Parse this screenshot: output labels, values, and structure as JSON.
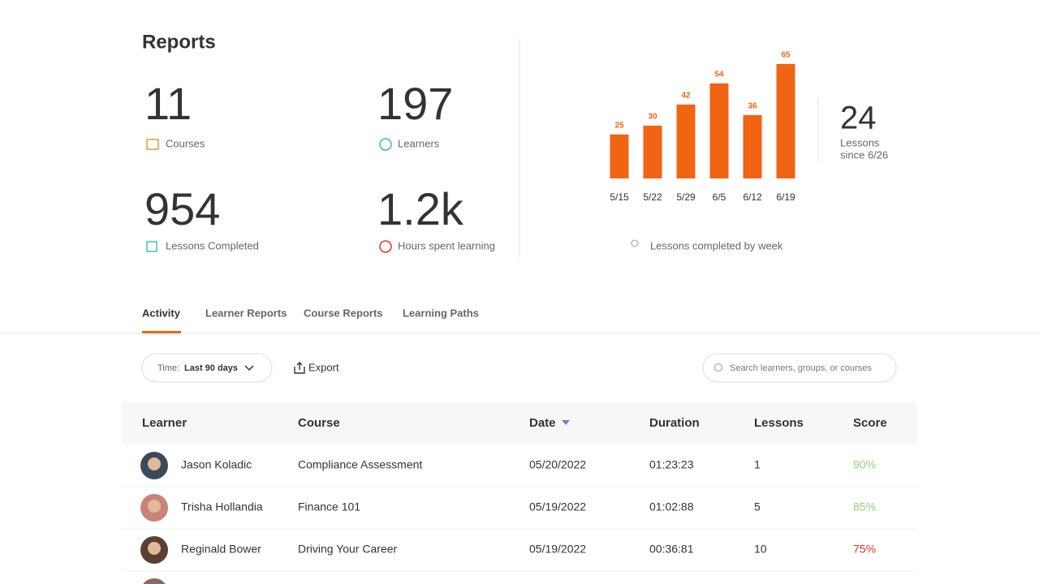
{
  "header": {
    "title": "Reports"
  },
  "stats": [
    {
      "value": "11",
      "label": "Courses"
    },
    {
      "value": "197",
      "label": "Learners"
    },
    {
      "value": "954",
      "label": "Lessons Completed"
    },
    {
      "value": "1.2k",
      "label": "Hours spent learning"
    }
  ],
  "chart": {
    "type": "bar",
    "categories": [
      "5/15",
      "5/22",
      "5/29",
      "6/5",
      "6/12",
      "6/19"
    ],
    "values": [
      25,
      30,
      42,
      54,
      36,
      65
    ],
    "color": "#f06414",
    "caption": "Lessons completed by week"
  },
  "side_stat": {
    "value": "24",
    "label_line1": "Lessons",
    "label_line2": "since 6/26"
  },
  "tabs": [
    "Activity",
    "Learner Reports",
    "Course Reports",
    "Learning Paths"
  ],
  "toolbar": {
    "time_label": "Time:",
    "time_value": "Last 90 days",
    "export": "Export",
    "search_placeholder": "Search learners, groups, or courses"
  },
  "table": {
    "headers": [
      "Learner",
      "Course",
      "Date",
      "Duration",
      "Lessons",
      "Score"
    ],
    "rows": [
      {
        "learner": "Jason Koladic",
        "course": "Compliance Assessment",
        "date": "05/20/2022",
        "duration": "01:23:23",
        "lessons": "1",
        "score": "90%",
        "score_color": "#8fd17a"
      },
      {
        "learner": "Trisha Hollandia",
        "course": "Finance 101",
        "date": "05/19/2022",
        "duration": "01:02:88",
        "lessons": "5",
        "score": "85%",
        "score_color": "#8fd17a"
      },
      {
        "learner": "Reginald Bower",
        "course": "Driving Your Career",
        "date": "05/19/2022",
        "duration": "00:36:81",
        "lessons": "10",
        "score": "75%",
        "score_color": "#d9382c"
      }
    ]
  }
}
